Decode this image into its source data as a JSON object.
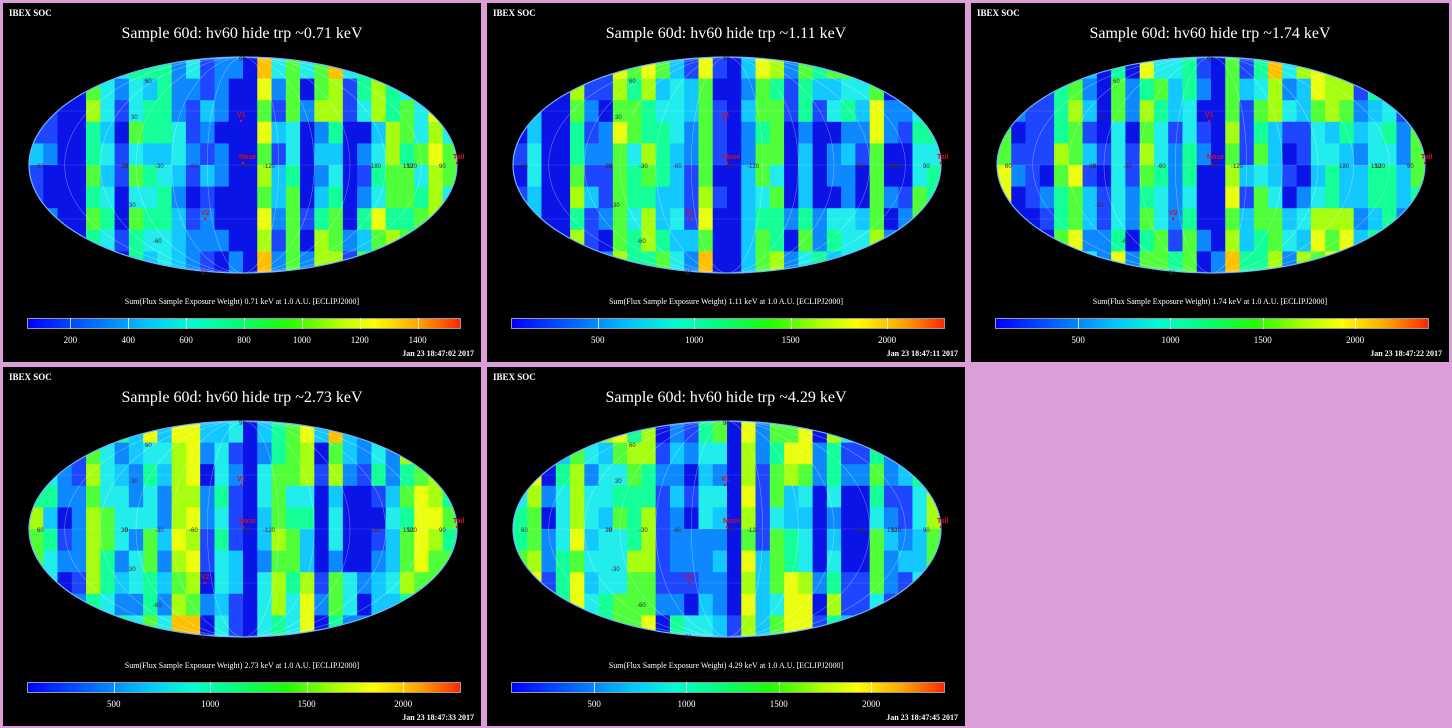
{
  "panels": [
    {
      "corner_label": "IBEX SOC",
      "title": "Sample 60d: hv60 hide trp ~0.71 keV",
      "colorbar_caption": "Sum(Flux Sample Exposure Weight)  0.71 keV at 1.0 A.U. [ECLIPJ2000]",
      "ticks": [
        "200",
        "400",
        "600",
        "800",
        "1000",
        "1200",
        "1400"
      ],
      "timestamp": "Jan 23 18:47:02 2017"
    },
    {
      "corner_label": "IBEX SOC",
      "title": "Sample 60d: hv60 hide trp ~1.11 keV",
      "colorbar_caption": "Sum(Flux Sample Exposure Weight)  1.11 keV at 1.0 A.U. [ECLIPJ2000]",
      "ticks": [
        "500",
        "1000",
        "1500",
        "2000"
      ],
      "timestamp": "Jan 23 18:47:11 2017"
    },
    {
      "corner_label": "IBEX SOC",
      "title": "Sample 60d: hv60 hide trp ~1.74 keV",
      "colorbar_caption": "Sum(Flux Sample Exposure Weight)  1.74 keV at 1.0 A.U. [ECLIPJ2000]",
      "ticks": [
        "500",
        "1000",
        "1500",
        "2000"
      ],
      "timestamp": "Jan 23 18:47:22 2017"
    },
    {
      "corner_label": "IBEX SOC",
      "title": "Sample 60d: hv60 hide trp ~2.73 keV",
      "colorbar_caption": "Sum(Flux Sample Exposure Weight)  2.73 keV at 1.0 A.U. [ECLIPJ2000]",
      "ticks": [
        "500",
        "1000",
        "1500",
        "2000"
      ],
      "timestamp": "Jan 23 18:47:33 2017"
    },
    {
      "corner_label": "IBEX SOC",
      "title": "Sample 60d: hv60 hide trp ~4.29 keV",
      "colorbar_caption": "Sum(Flux Sample Exposure Weight)  4.29 keV at 1.0 A.U. [ECLIPJ2000]",
      "ticks": [
        "500",
        "1000",
        "1500",
        "2000"
      ],
      "timestamp": "Jan 23 18:47:45 2017"
    }
  ],
  "map_labels": {
    "longitudes": [
      "60",
      "30",
      "0",
      "-30",
      "-60",
      "-90",
      "-120",
      "180",
      "150",
      "120",
      "90"
    ],
    "latitudes": [
      "60",
      "30",
      "-30",
      "-60",
      "90",
      "-90"
    ],
    "markers": [
      "V1",
      "V2",
      "Nose",
      "Tail"
    ]
  },
  "chart_data": [
    {
      "type": "heatmap",
      "title": "Sample 60d: hv60 hide trp ~0.71 keV",
      "projection": "mollweide",
      "energy_keV": 0.71,
      "colorbar_label": "Sum(Flux Sample Exposure Weight)",
      "colorbar_ticks": [
        200,
        400,
        600,
        800,
        1000,
        1200,
        1400
      ],
      "colorbar_range": [
        50,
        1550
      ]
    },
    {
      "type": "heatmap",
      "title": "Sample 60d: hv60 hide trp ~1.11 keV",
      "projection": "mollweide",
      "energy_keV": 1.11,
      "colorbar_label": "Sum(Flux Sample Exposure Weight)",
      "colorbar_ticks": [
        500,
        1000,
        1500,
        2000
      ],
      "colorbar_range": [
        50,
        2300
      ]
    },
    {
      "type": "heatmap",
      "title": "Sample 60d: hv60 hide trp ~1.74 keV",
      "projection": "mollweide",
      "energy_keV": 1.74,
      "colorbar_label": "Sum(Flux Sample Exposure Weight)",
      "colorbar_ticks": [
        500,
        1000,
        1500,
        2000
      ],
      "colorbar_range": [
        50,
        2400
      ]
    },
    {
      "type": "heatmap",
      "title": "Sample 60d: hv60 hide trp ~2.73 keV",
      "projection": "mollweide",
      "energy_keV": 2.73,
      "colorbar_label": "Sum(Flux Sample Exposure Weight)",
      "colorbar_ticks": [
        500,
        1000,
        1500,
        2000
      ],
      "colorbar_range": [
        50,
        2300
      ]
    },
    {
      "type": "heatmap",
      "title": "Sample 60d: hv60 hide trp ~4.29 keV",
      "projection": "mollweide",
      "energy_keV": 4.29,
      "colorbar_label": "Sum(Flux Sample Exposure Weight)",
      "colorbar_ticks": [
        500,
        1000,
        1500,
        2000
      ],
      "colorbar_range": [
        50,
        2400
      ]
    }
  ]
}
